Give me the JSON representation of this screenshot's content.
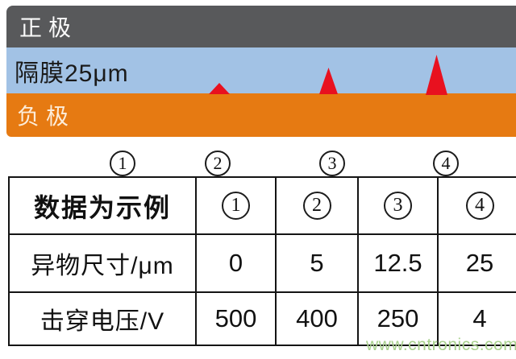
{
  "diagram": {
    "layers": [
      {
        "id": "positive-electrode",
        "label": "正极"
      },
      {
        "id": "separator",
        "label": "隔膜25μm"
      },
      {
        "id": "negative-electrode",
        "label": "负极"
      }
    ],
    "colors": {
      "positive": "#58595b",
      "separator": "#a2c2e5",
      "negative": "#e67a12",
      "particle": "#e8111f"
    }
  },
  "markers": [
    {
      "label": "1"
    },
    {
      "label": "2"
    },
    {
      "label": "3"
    },
    {
      "label": "4"
    }
  ],
  "table": {
    "header": {
      "label": "数据为示例",
      "cells": [
        "1",
        "2",
        "3",
        "4"
      ]
    },
    "rows": [
      {
        "label": "异物尺寸/μm",
        "cells": [
          "0",
          "5",
          "12.5",
          "25"
        ]
      },
      {
        "label": "击穿电压/V",
        "cells": [
          "500",
          "400",
          "250",
          "4"
        ]
      }
    ]
  },
  "watermark": {
    "text": "www.cntronics.com",
    "color": "#a9d18e"
  }
}
